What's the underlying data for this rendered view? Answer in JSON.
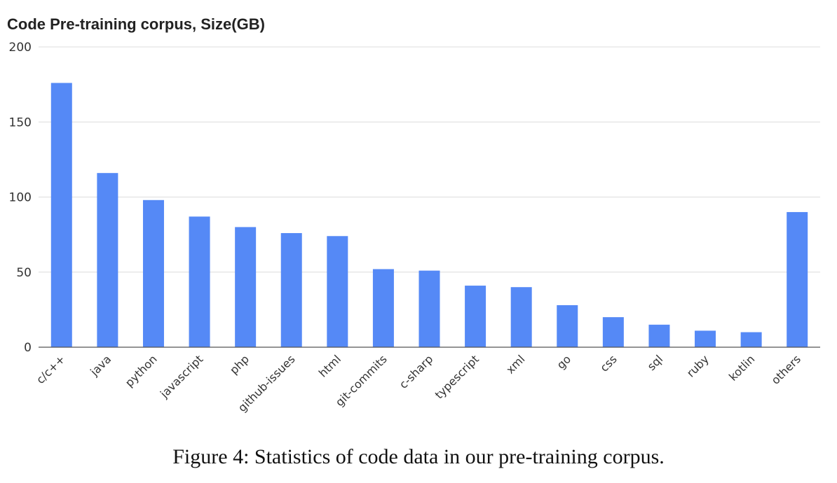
{
  "chart_data": {
    "type": "bar",
    "title": "Code Pre-training corpus, Size(GB)",
    "categories": [
      "c/c++",
      "java",
      "python",
      "javascript",
      "php",
      "github-issues",
      "html",
      "git-commits",
      "c-sharp",
      "typescript",
      "xml",
      "go",
      "css",
      "sql",
      "ruby",
      "kotlin",
      "others"
    ],
    "values": [
      176,
      116,
      98,
      87,
      80,
      76,
      74,
      52,
      51,
      41,
      40,
      28,
      20,
      15,
      11,
      10,
      90
    ],
    "ylim": [
      0,
      200
    ],
    "yticks": [
      0,
      50,
      100,
      150,
      200
    ],
    "grid": true,
    "bar_color": "#5589f6"
  },
  "caption": "Figure 4: Statistics of code data in our pre-training corpus."
}
